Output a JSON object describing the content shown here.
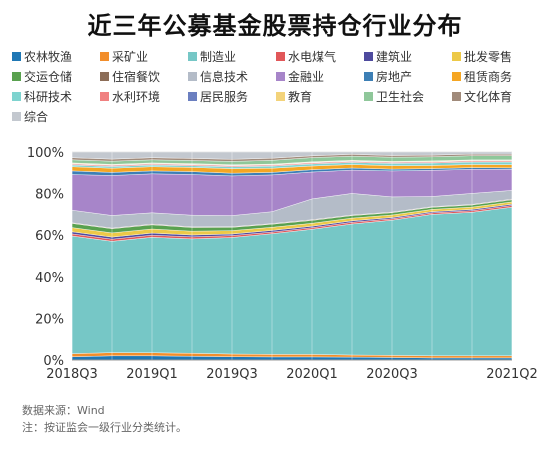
{
  "chart_data": {
    "type": "area",
    "stacked": true,
    "normalized": true,
    "title": "近三年公募基金股票持仓行业分布",
    "x": [
      "2018Q3",
      "2018Q4",
      "2019Q1",
      "2019Q2",
      "2019Q3",
      "2019Q4",
      "2020Q1",
      "2020Q2",
      "2020Q3",
      "2020Q4",
      "2021Q1",
      "2021Q2"
    ],
    "x_tick_labels": [
      "2018Q3",
      "2019Q1",
      "2019Q3",
      "2020Q1",
      "2020Q3",
      "2021Q2"
    ],
    "y_tick_labels": [
      "0%",
      "20%",
      "40%",
      "60%",
      "80%",
      "100%"
    ],
    "ylim": [
      0,
      100
    ],
    "legend_position": "top",
    "series": [
      {
        "name": "农林牧渔",
        "color": "#1f77b4",
        "values": [
          1.5,
          2.0,
          2.0,
          1.8,
          1.6,
          1.5,
          1.5,
          1.4,
          1.2,
          1.0,
          1.0,
          1.0
        ]
      },
      {
        "name": "采矿业",
        "color": "#f28e2b",
        "values": [
          1.5,
          1.5,
          1.5,
          1.4,
          1.3,
          1.2,
          1.2,
          1.0,
          1.0,
          1.0,
          1.0,
          1.0
        ]
      },
      {
        "name": "制造业",
        "color": "#76c7c6",
        "values": [
          56,
          53,
          55,
          55,
          56,
          58,
          60,
          63,
          65,
          68,
          69,
          70
        ]
      },
      {
        "name": "水电煤气",
        "color": "#e15759",
        "values": [
          1.0,
          1.0,
          1.0,
          1.0,
          0.9,
          0.8,
          0.8,
          0.8,
          0.7,
          0.7,
          0.8,
          0.8
        ]
      },
      {
        "name": "建筑业",
        "color": "#4e4a9e",
        "values": [
          1.0,
          1.0,
          1.0,
          0.9,
          0.8,
          0.8,
          0.7,
          0.7,
          0.6,
          0.6,
          0.6,
          0.6
        ]
      },
      {
        "name": "批发零售",
        "color": "#edc948",
        "values": [
          2.0,
          2.0,
          2.0,
          1.8,
          1.6,
          1.5,
          1.4,
          1.3,
          1.2,
          1.1,
          1.1,
          1.1
        ]
      },
      {
        "name": "交运仓储",
        "color": "#59a14f",
        "values": [
          2.0,
          2.0,
          2.0,
          1.8,
          1.6,
          1.5,
          1.4,
          1.2,
          1.1,
          1.0,
          1.0,
          1.0
        ]
      },
      {
        "name": "住宿餐饮",
        "color": "#8c6d58",
        "values": [
          0.3,
          0.3,
          0.3,
          0.3,
          0.3,
          0.3,
          0.3,
          0.3,
          0.3,
          0.3,
          0.3,
          0.3
        ]
      },
      {
        "name": "信息技术",
        "color": "#b4bcc8",
        "values": [
          6.0,
          6.0,
          5.4,
          5.6,
          5.3,
          5.7,
          10.0,
          10.4,
          7.3,
          4.9,
          5.3,
          4.1
        ]
      },
      {
        "name": "金融业",
        "color": "#a785c9",
        "values": [
          17.0,
          19.0,
          18.6,
          19.6,
          19.1,
          17.7,
          12.9,
          11.2,
          12.5,
          12.6,
          11.6,
          9.9
        ]
      },
      {
        "name": "房地产",
        "color": "#3d7fb5",
        "values": [
          1.7,
          1.5,
          1.4,
          1.4,
          1.3,
          1.2,
          1.1,
          1.0,
          0.9,
          0.8,
          0.8,
          0.7
        ]
      },
      {
        "name": "租赁商务",
        "color": "#f5a623",
        "values": [
          2.0,
          2.0,
          2.0,
          2.0,
          2.2,
          2.0,
          1.8,
          1.7,
          1.6,
          1.5,
          1.5,
          1.5
        ]
      },
      {
        "name": "科研技术",
        "color": "#7ed3cf",
        "values": [
          0.8,
          0.8,
          0.8,
          0.8,
          0.9,
          1.0,
          1.0,
          1.0,
          1.1,
          1.2,
          1.2,
          1.3
        ]
      },
      {
        "name": "水利环境",
        "color": "#f08080",
        "values": [
          0.5,
          0.5,
          0.5,
          0.5,
          0.5,
          0.5,
          0.5,
          0.5,
          0.5,
          0.5,
          0.5,
          0.5
        ]
      },
      {
        "name": "居民服务",
        "color": "#6b7fc0",
        "values": [
          0.2,
          0.2,
          0.2,
          0.2,
          0.2,
          0.2,
          0.2,
          0.2,
          0.2,
          0.2,
          0.2,
          0.2
        ]
      },
      {
        "name": "教育",
        "color": "#f3d37a",
        "values": [
          0.3,
          0.3,
          0.3,
          0.3,
          0.3,
          0.3,
          0.3,
          0.3,
          0.3,
          0.3,
          0.3,
          0.3
        ]
      },
      {
        "name": "卫生社会",
        "color": "#8fc79a",
        "values": [
          1.5,
          1.5,
          1.5,
          1.5,
          1.6,
          1.8,
          2.0,
          2.0,
          2.0,
          2.0,
          2.0,
          2.0
        ]
      },
      {
        "name": "文化体育",
        "color": "#a08a7a",
        "values": [
          1.0,
          1.0,
          1.0,
          1.0,
          1.0,
          1.0,
          0.9,
          0.9,
          0.8,
          0.8,
          0.8,
          0.7
        ]
      },
      {
        "name": "综合",
        "color": "#c3c8cf",
        "values": [
          2.7,
          3.4,
          2.7,
          3.1,
          3.5,
          3.0,
          1.8,
          1.1,
          1.7,
          1.5,
          1.0,
          1.0
        ]
      }
    ]
  },
  "footer": {
    "source": "数据来源：Wind",
    "note": "注：按证监会一级行业分类统计。"
  }
}
